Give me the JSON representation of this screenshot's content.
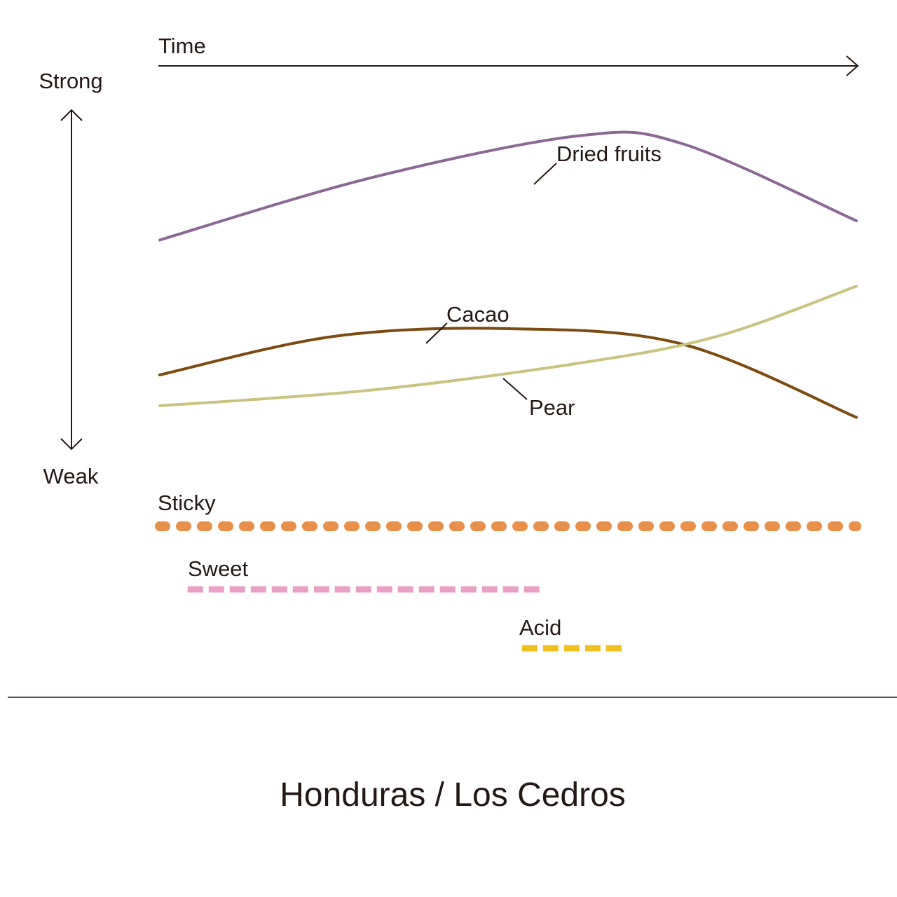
{
  "chart_data": {
    "type": "line",
    "x_axis_label": "Time",
    "y_axis_top_label": "Strong",
    "y_axis_bottom_label": "Weak",
    "x_range": [
      0,
      1
    ],
    "y_range": [
      0,
      1
    ],
    "grid": false,
    "curves": [
      {
        "name": "Dried fruits",
        "color": "#8a6893",
        "points": [
          [
            0,
            0.55
          ],
          [
            0.3,
            0.71
          ],
          [
            0.6,
            0.82
          ],
          [
            0.75,
            0.8
          ],
          [
            1,
            0.6
          ]
        ]
      },
      {
        "name": "Cacao",
        "color": "#7d4a0f",
        "points": [
          [
            0,
            0.2
          ],
          [
            0.25,
            0.3
          ],
          [
            0.5,
            0.32
          ],
          [
            0.75,
            0.28
          ],
          [
            1,
            0.09
          ]
        ]
      },
      {
        "name": "Pear",
        "color": "#c9c37f",
        "points": [
          [
            0,
            0.12
          ],
          [
            0.3,
            0.16
          ],
          [
            0.6,
            0.23
          ],
          [
            0.8,
            0.3
          ],
          [
            1,
            0.43
          ]
        ]
      }
    ],
    "bands": [
      {
        "name": "Sticky",
        "color": "#e8904a",
        "style": "dotted",
        "start": 0,
        "end": 1
      },
      {
        "name": "Sweet",
        "color": "#eaa0c4",
        "style": "dashed",
        "start": 0.04,
        "end": 0.55
      },
      {
        "name": "Acid",
        "color": "#f0c020",
        "style": "dashed",
        "start": 0.52,
        "end": 0.67
      }
    ]
  },
  "caption": "Honduras / Los Cedros"
}
